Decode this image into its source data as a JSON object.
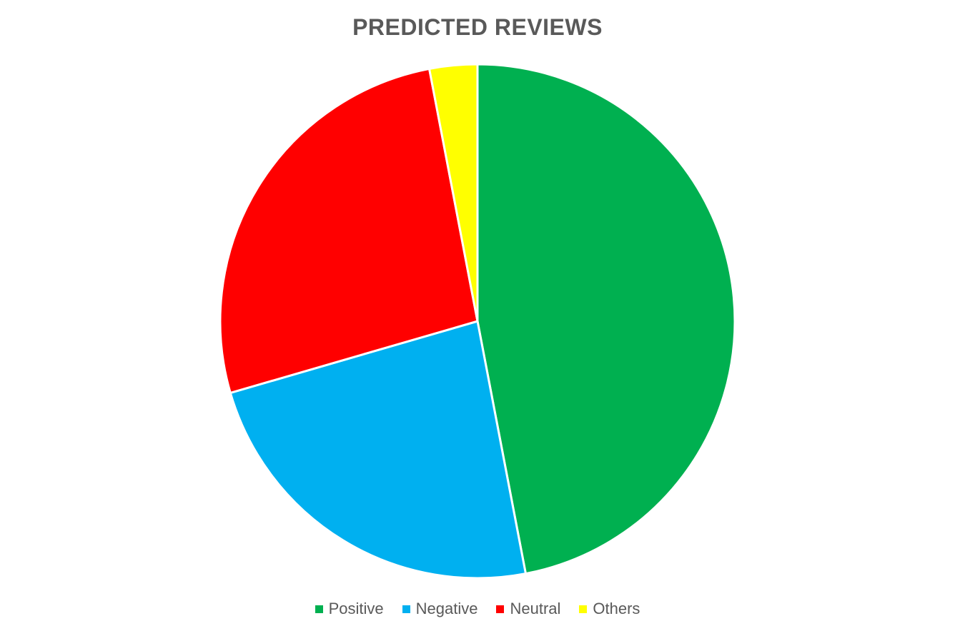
{
  "chart_data": {
    "type": "pie",
    "title": "PREDICTED REVIEWS",
    "categories": [
      "Positive",
      "Negative",
      "Neutral",
      "Others"
    ],
    "values": [
      47.0,
      23.5,
      26.5,
      3.0
    ],
    "colors": [
      "#00B050",
      "#00B0F0",
      "#FF0000",
      "#FFFF00"
    ],
    "start_angle_deg": 0,
    "direction": "clockwise",
    "legend_position": "bottom"
  }
}
